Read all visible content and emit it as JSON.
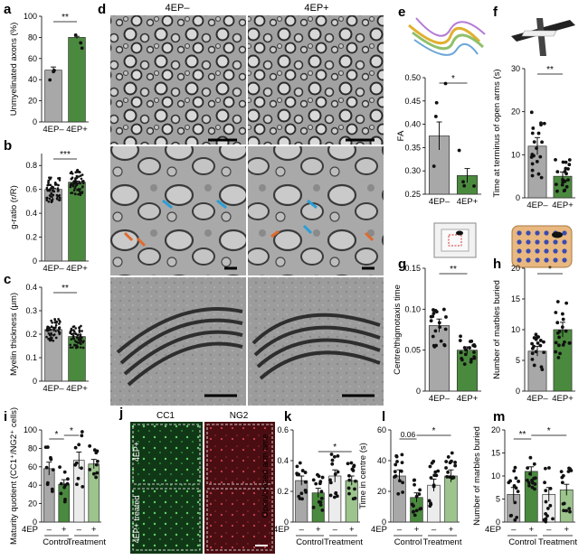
{
  "colors": {
    "grey": "#a8a8a8",
    "green": "#4a8a3e",
    "light_grey": "#ececec",
    "light_green": "#9cc48c",
    "em_bg": "#9d9d9d",
    "em_dark": "#2c2c2c",
    "fluor_green": "#1c7a2c",
    "fluor_red": "#8c1c22"
  },
  "micrographs": {
    "panel_letter": "d",
    "col_minus": "4EP–",
    "col_plus": "4EP+"
  },
  "fluorescence": {
    "panel_letter": "j",
    "col_cc1": "CC1",
    "col_ng2": "NG2",
    "row_top": "4EP+",
    "row_bottom": "4EP+ treated"
  },
  "insets": {
    "e": "fibre-tract-render-icon",
    "f": "elevated-plus-maze-icon",
    "g": "open-field-arena-icon",
    "h": "marble-grid-icon"
  },
  "chart_data": [
    {
      "panel": "a",
      "type": "bar",
      "title": "",
      "ylabel": "Unmyelinated axons (%)",
      "categories": [
        "4EP–",
        "4EP+"
      ],
      "values": [
        49,
        80
      ],
      "sem": [
        3,
        1
      ],
      "ylim": [
        0,
        100
      ],
      "yticks": [
        0,
        20,
        40,
        60,
        80,
        100
      ],
      "significance": "**"
    },
    {
      "panel": "b",
      "type": "bar",
      "title": "",
      "ylabel": "g-ratio (r/R)",
      "categories": [
        "4EP–",
        "4EP+"
      ],
      "values": [
        0.6,
        0.66
      ],
      "sem": [
        0.01,
        0.01
      ],
      "ylim": [
        0,
        0.9
      ],
      "yticks": [
        0,
        0.2,
        0.4,
        0.6,
        0.8
      ],
      "significance": "***"
    },
    {
      "panel": "c",
      "type": "bar",
      "title": "",
      "ylabel": "Myelin thickness (μm)",
      "categories": [
        "4EP–",
        "4EP+"
      ],
      "values": [
        0.22,
        0.19
      ],
      "sem": [
        0.01,
        0.01
      ],
      "ylim": [
        0,
        0.4
      ],
      "yticks": [
        0,
        0.1,
        0.2,
        0.3,
        0.4
      ],
      "significance": "**"
    },
    {
      "panel": "e",
      "type": "bar",
      "title": "",
      "ylabel": "FA",
      "categories": [
        "4EP–",
        "4EP+"
      ],
      "values": [
        0.375,
        0.29
      ],
      "sem": [
        0.03,
        0.015
      ],
      "ylim": [
        0.25,
        0.5
      ],
      "yticks": [
        0.25,
        0.3,
        0.35,
        0.4,
        0.45,
        0.5
      ],
      "significance": "*"
    },
    {
      "panel": "f",
      "type": "bar",
      "title": "",
      "ylabel": "Time at terminus of open arms (s)",
      "categories": [
        "4EP–",
        "4EP+"
      ],
      "values": [
        12,
        5
      ],
      "sem": [
        2,
        1
      ],
      "ylim": [
        0,
        30
      ],
      "yticks": [
        0,
        10,
        20,
        30
      ],
      "significance": "**"
    },
    {
      "panel": "g",
      "type": "bar",
      "title": "",
      "ylabel": "Centre/thigmotaxis time",
      "categories": [
        "4EP–",
        "4EP+"
      ],
      "values": [
        0.08,
        0.05
      ],
      "sem": [
        0.008,
        0.004
      ],
      "ylim": [
        0,
        0.15
      ],
      "yticks": [
        0,
        0.05,
        0.1,
        0.15
      ],
      "significance": "**"
    },
    {
      "panel": "h",
      "type": "bar",
      "title": "",
      "ylabel": "Number of marbles buried",
      "categories": [
        "4EP–",
        "4EP+"
      ],
      "values": [
        6.5,
        10
      ],
      "sem": [
        0.8,
        1.2
      ],
      "ylim": [
        0,
        20
      ],
      "yticks": [
        0,
        5,
        10,
        15,
        20
      ],
      "significance": "*"
    },
    {
      "panel": "i",
      "type": "bar",
      "title": "",
      "ylabel": "Maturity quotient (CC1⁺/NG2⁺ cells)",
      "categories": [
        "–",
        "+",
        "–",
        "+"
      ],
      "groups": [
        "Control",
        "Treatment"
      ],
      "row_label": "4EP",
      "values": [
        58,
        41,
        67,
        63
      ],
      "sem": [
        7,
        5,
        9,
        5
      ],
      "ylim": [
        0,
        100
      ],
      "yticks": [
        0,
        20,
        40,
        60,
        80,
        100
      ],
      "significance": [
        "*",
        "*"
      ]
    },
    {
      "panel": "k",
      "type": "bar",
      "title": "",
      "ylabel": "Open/closed arm time",
      "categories": [
        "–",
        "+",
        "–",
        "+"
      ],
      "groups": [
        "Control",
        "Treatment"
      ],
      "row_label": "4EP",
      "values": [
        0.27,
        0.19,
        0.3,
        0.27
      ],
      "sem": [
        0.03,
        0.03,
        0.04,
        0.03
      ],
      "ylim": [
        0,
        0.6
      ],
      "yticks": [
        0,
        0.2,
        0.4,
        0.6
      ],
      "significance": [
        "*"
      ]
    },
    {
      "panel": "l",
      "type": "bar",
      "title": "",
      "ylabel": "Time in centre (s)",
      "categories": [
        "–",
        "+",
        "–",
        "+"
      ],
      "groups": [
        "Control",
        "Treatment"
      ],
      "row_label": "4EP",
      "values": [
        30,
        16,
        24,
        30
      ],
      "sem": [
        4,
        3,
        4,
        4
      ],
      "ylim": [
        0,
        60
      ],
      "yticks": [
        0,
        20,
        40,
        60
      ],
      "significance": [
        "0.06",
        "*"
      ]
    },
    {
      "panel": "m",
      "type": "bar",
      "title": "",
      "ylabel": "Number of marbles buried",
      "categories": [
        "–",
        "+",
        "–",
        "+"
      ],
      "groups": [
        "Control",
        "Treatment"
      ],
      "row_label": "4EP",
      "values": [
        6,
        11,
        6,
        7
      ],
      "sem": [
        1.5,
        1,
        1.5,
        1.2
      ],
      "ylim": [
        0,
        20
      ],
      "yticks": [
        0,
        5,
        10,
        15,
        20
      ],
      "significance": [
        "**",
        "*"
      ]
    }
  ]
}
